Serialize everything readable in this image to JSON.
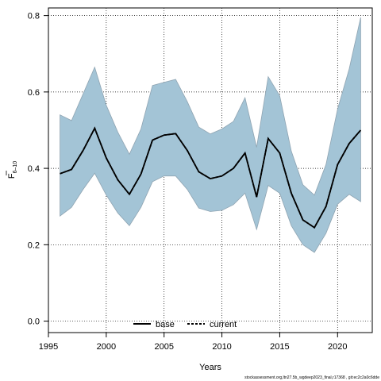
{
  "chart_data": {
    "type": "line",
    "title": "",
    "xlabel": "Years",
    "ylabel_main": "F",
    "ylabel_sub": "6–10",
    "xlim": [
      1995,
      2023
    ],
    "ylim": [
      -0.03,
      0.82
    ],
    "x_ticks": [
      1995,
      2000,
      2005,
      2010,
      2015,
      2020
    ],
    "y_ticks": [
      0.0,
      0.2,
      0.4,
      0.6,
      0.8
    ],
    "grid": true,
    "legend_position": "bottom-center",
    "colors": {
      "band_fill": "#a3c4d6",
      "band_stroke": "#8fa4b2",
      "base_line": "#000000",
      "current_line": "#000000"
    },
    "x": [
      1996,
      1997,
      1998,
      1999,
      2000,
      2001,
      2002,
      2003,
      2004,
      2005,
      2006,
      2007,
      2008,
      2009,
      2010,
      2011,
      2012,
      2013,
      2014,
      2015,
      2016,
      2017,
      2018,
      2019,
      2020,
      2021,
      2022
    ],
    "band_upper": [
      0.54,
      0.525,
      0.595,
      0.665,
      0.565,
      0.495,
      0.437,
      0.503,
      0.617,
      0.625,
      0.633,
      0.575,
      0.508,
      0.49,
      0.503,
      0.523,
      0.585,
      0.455,
      0.64,
      0.59,
      0.445,
      0.357,
      0.33,
      0.41,
      0.555,
      0.66,
      0.795
    ],
    "band_lower": [
      0.275,
      0.298,
      0.345,
      0.387,
      0.33,
      0.283,
      0.25,
      0.298,
      0.365,
      0.38,
      0.38,
      0.345,
      0.296,
      0.287,
      0.29,
      0.305,
      0.335,
      0.24,
      0.355,
      0.335,
      0.25,
      0.2,
      0.18,
      0.23,
      0.306,
      0.332,
      0.313
    ],
    "series": [
      {
        "name": "base",
        "values": [
          0.386,
          0.397,
          0.447,
          0.505,
          0.427,
          0.37,
          0.332,
          0.385,
          0.474,
          0.487,
          0.491,
          0.447,
          0.391,
          0.373,
          0.38,
          0.4,
          0.44,
          0.325,
          0.478,
          0.44,
          0.335,
          0.265,
          0.245,
          0.3,
          0.41,
          0.465,
          0.5
        ]
      },
      {
        "name": "current",
        "values": [
          0.386,
          0.397,
          0.447,
          0.505,
          0.427,
          0.37,
          0.332,
          0.385,
          0.474,
          0.487,
          0.491,
          0.447,
          0.391,
          0.373,
          0.38,
          0.4,
          0.44,
          0.325,
          0.478,
          0.44,
          0.335,
          0.265,
          0.245,
          0.3,
          0.41,
          0.465,
          0.5
        ]
      }
    ]
  },
  "legend": {
    "base_label": "base",
    "current_label": "current"
  },
  "footer": "stockassessment.org,ltn27.5b_wgdeep2023_final,r17368 , git:ec2c2a0c6dde"
}
